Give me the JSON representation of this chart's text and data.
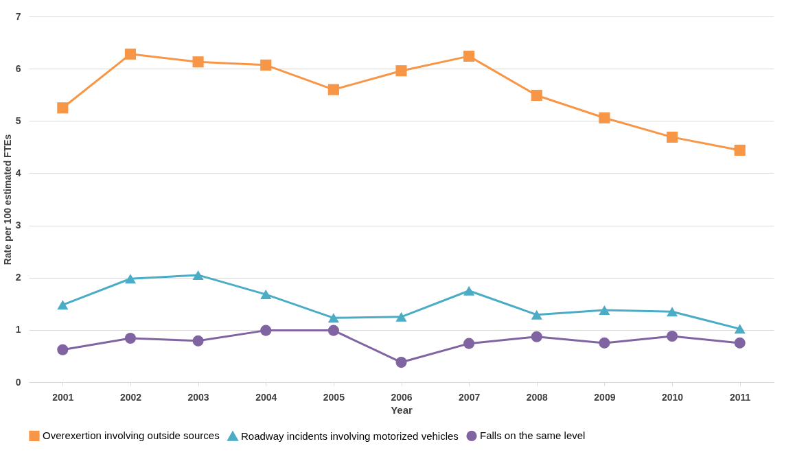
{
  "chart_data": {
    "type": "line",
    "xlabel": "Year",
    "ylabel": "Rate per 100 estimated FTEs",
    "categories": [
      "2001",
      "2002",
      "2003",
      "2004",
      "2005",
      "2006",
      "2007",
      "2008",
      "2009",
      "2010",
      "2011"
    ],
    "series": [
      {
        "name": "Overexertion involving outside sources",
        "color": "#f79646",
        "marker": "square",
        "values": [
          5.25,
          6.28,
          6.13,
          6.07,
          5.6,
          5.96,
          6.24,
          5.49,
          5.06,
          4.69,
          4.44
        ]
      },
      {
        "name": "Roadway incidents involving motorized vehicles",
        "color": "#4bacc6",
        "marker": "triangle",
        "values": [
          1.48,
          1.98,
          2.05,
          1.68,
          1.23,
          1.25,
          1.75,
          1.29,
          1.38,
          1.35,
          1.02
        ]
      },
      {
        "name": "Falls on the same level",
        "color": "#8064a2",
        "marker": "circle",
        "values": [
          0.62,
          0.84,
          0.79,
          0.99,
          0.99,
          0.38,
          0.74,
          0.87,
          0.75,
          0.88,
          0.75
        ]
      }
    ],
    "ylim": [
      0,
      7
    ],
    "yticks": [
      0,
      1,
      2,
      3,
      4,
      5,
      6,
      7
    ],
    "grid": "y",
    "legend": "bottom"
  }
}
